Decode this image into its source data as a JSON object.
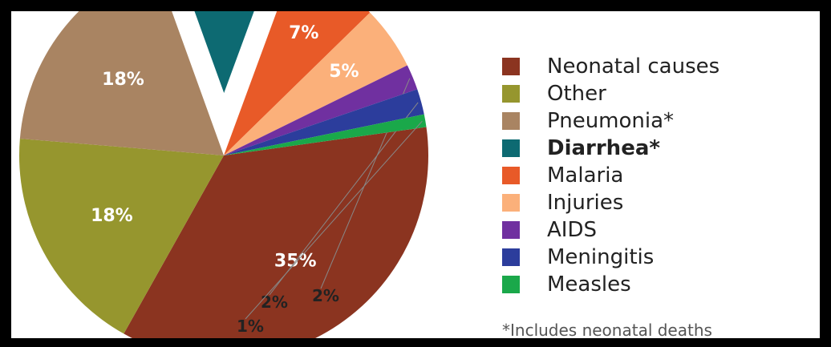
{
  "chart_data": {
    "type": "pie",
    "slices": [
      {
        "label": "Neonatal causes",
        "value": 35,
        "display": "35%",
        "color": "#8b3420",
        "text_color": "#ffffff",
        "bold": false,
        "exploded": false
      },
      {
        "label": "Other",
        "value": 18,
        "display": "18%",
        "color": "#96962e",
        "text_color": "#ffffff",
        "bold": false,
        "exploded": false
      },
      {
        "label": "Pneumonia*",
        "value": 18,
        "display": "18%",
        "color": "#a98462",
        "text_color": "#ffffff",
        "bold": false,
        "exploded": false
      },
      {
        "label": "Diarrhea*",
        "value": 11,
        "display": "11%",
        "color": "#0d6a72",
        "text_color": "#ffffff",
        "bold": true,
        "exploded": true
      },
      {
        "label": "Malaria",
        "value": 7,
        "display": "7%",
        "color": "#e85a28",
        "text_color": "#ffffff",
        "bold": false,
        "exploded": false
      },
      {
        "label": "Injuries",
        "value": 5,
        "display": "5%",
        "color": "#fbb07a",
        "text_color": "#ffffff",
        "bold": false,
        "exploded": false
      },
      {
        "label": "AIDS",
        "value": 2,
        "display": "2%",
        "color": "#7030a0",
        "text_color": "#222222",
        "bold": false,
        "exploded": false
      },
      {
        "label": "Meningitis",
        "value": 2,
        "display": "2%",
        "color": "#2c3d9c",
        "text_color": "#222222",
        "bold": false,
        "exploded": false
      },
      {
        "label": "Measles",
        "value": 1,
        "display": "1%",
        "color": "#1aa84a",
        "text_color": "#222222",
        "bold": false,
        "exploded": false
      }
    ],
    "legend_position": "right",
    "footnote": "*Includes neonatal deaths"
  }
}
